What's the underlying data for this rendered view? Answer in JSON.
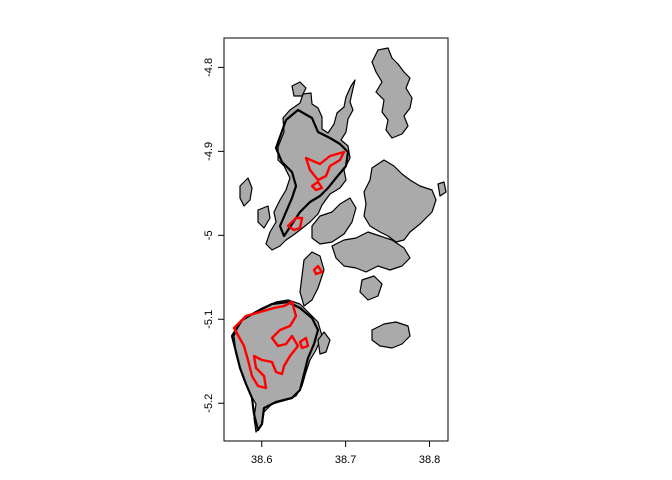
{
  "map": {
    "x_ticks": [
      {
        "value": 38.6,
        "label": "38.6"
      },
      {
        "value": 38.7,
        "label": "38.7"
      },
      {
        "value": 38.8,
        "label": "38.8"
      }
    ],
    "y_ticks": [
      {
        "value": -4.8,
        "label": "-4.8"
      },
      {
        "value": -4.9,
        "label": "-4.9"
      },
      {
        "value": -5.0,
        "label": "-5"
      },
      {
        "value": -5.1,
        "label": "-5.1"
      },
      {
        "value": -5.2,
        "label": "-5.2"
      }
    ],
    "xlim": [
      38.555,
      38.822
    ],
    "ylim": [
      -5.245,
      -4.765
    ],
    "colors": {
      "land": "#aaaaaa",
      "boundary_black": "#000000",
      "boundary_red": "#ff0000",
      "background": "#ffffff"
    }
  }
}
